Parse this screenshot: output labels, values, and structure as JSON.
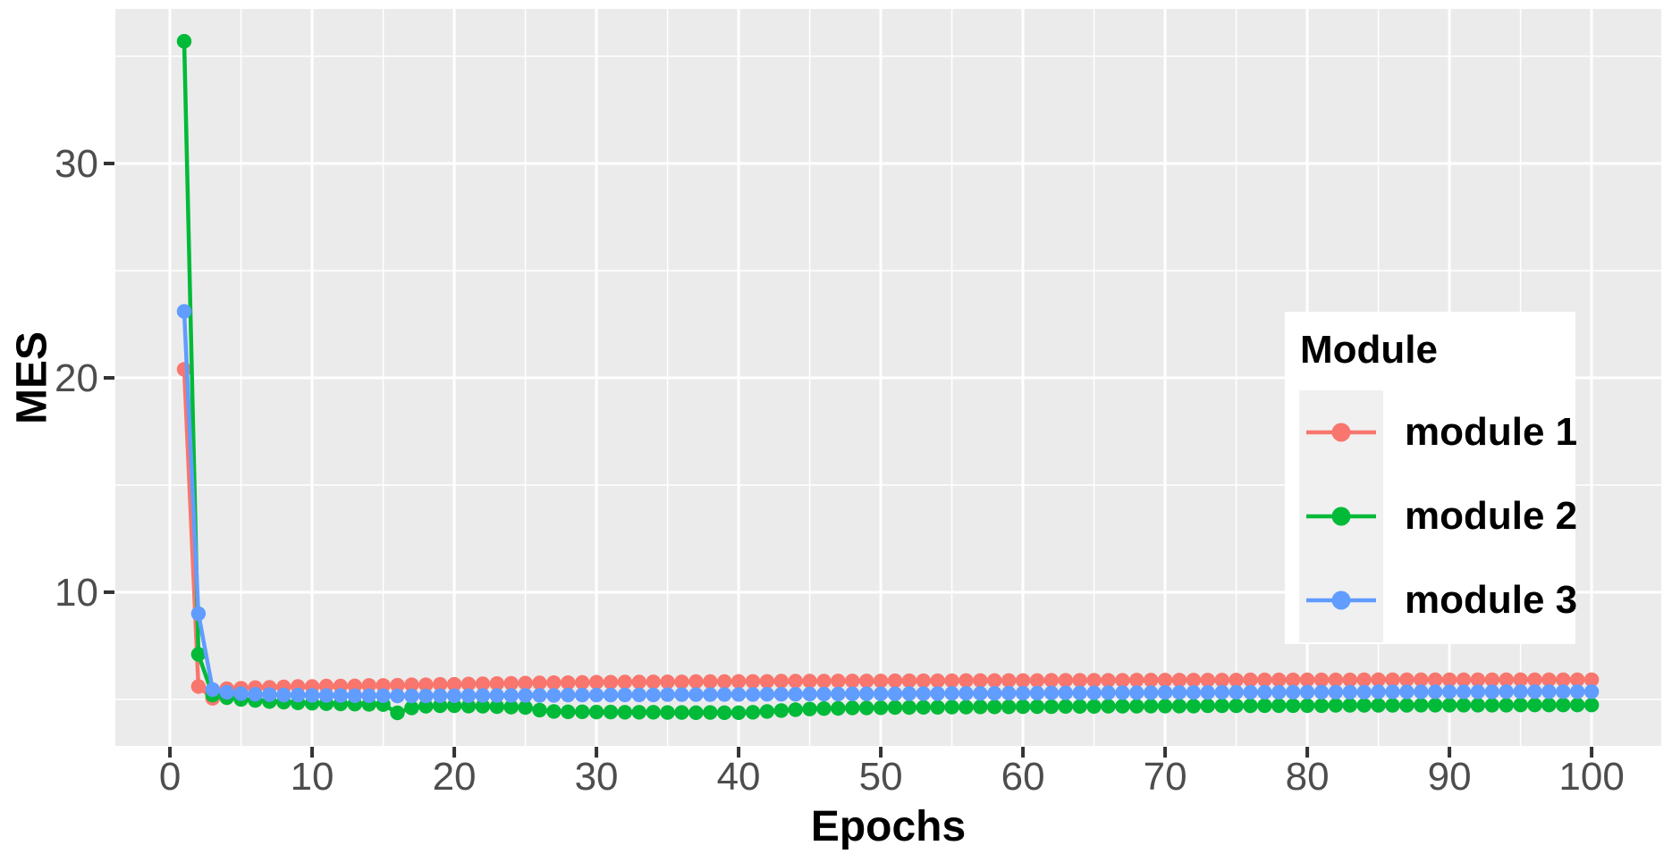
{
  "chart_data": {
    "type": "line",
    "title": "",
    "xlabel": "Epochs",
    "ylabel": "MES",
    "x_ticks": [
      0,
      10,
      20,
      30,
      40,
      50,
      60,
      70,
      80,
      90,
      100
    ],
    "x_minor_ticks": [
      5,
      15,
      25,
      35,
      45,
      55,
      65,
      75,
      85,
      95
    ],
    "y_ticks": [
      10,
      20,
      30
    ],
    "y_minor_ticks": [
      5,
      15,
      25,
      35
    ],
    "xlim": [
      -3.84,
      104.9
    ],
    "ylim": [
      2.83,
      37.21
    ],
    "grid": "white-on-gray",
    "legend": {
      "title": "Module",
      "position": "inside-right",
      "entries": [
        {
          "label": "module 1",
          "color": "#F8766D"
        },
        {
          "label": "module 2",
          "color": "#00BA38"
        },
        {
          "label": "module 3",
          "color": "#619CFF"
        }
      ]
    },
    "x": [
      1,
      2,
      3,
      4,
      5,
      6,
      7,
      8,
      9,
      10,
      11,
      12,
      13,
      14,
      15,
      16,
      17,
      18,
      19,
      20,
      21,
      22,
      23,
      24,
      25,
      26,
      27,
      28,
      29,
      30,
      31,
      32,
      33,
      34,
      35,
      36,
      37,
      38,
      39,
      40,
      41,
      42,
      43,
      44,
      45,
      46,
      47,
      48,
      49,
      50,
      51,
      52,
      53,
      54,
      55,
      56,
      57,
      58,
      59,
      60,
      61,
      62,
      63,
      64,
      65,
      66,
      67,
      68,
      69,
      70,
      71,
      72,
      73,
      74,
      75,
      76,
      77,
      78,
      79,
      80,
      81,
      82,
      83,
      84,
      85,
      86,
      87,
      88,
      89,
      90,
      91,
      92,
      93,
      94,
      95,
      96,
      97,
      98,
      99,
      100
    ],
    "series": [
      {
        "name": "module 1",
        "color": "#F8766D",
        "values": [
          20.4,
          5.6,
          5.05,
          5.5,
          5.52,
          5.55,
          5.56,
          5.58,
          5.6,
          5.6,
          5.62,
          5.62,
          5.63,
          5.65,
          5.65,
          5.66,
          5.68,
          5.68,
          5.7,
          5.7,
          5.72,
          5.73,
          5.74,
          5.75,
          5.76,
          5.77,
          5.78,
          5.78,
          5.79,
          5.8,
          5.8,
          5.81,
          5.81,
          5.82,
          5.82,
          5.82,
          5.83,
          5.83,
          5.83,
          5.84,
          5.84,
          5.84,
          5.85,
          5.85,
          5.85,
          5.85,
          5.86,
          5.86,
          5.86,
          5.86,
          5.87,
          5.87,
          5.87,
          5.87,
          5.87,
          5.88,
          5.88,
          5.88,
          5.88,
          5.88,
          5.88,
          5.89,
          5.89,
          5.89,
          5.89,
          5.89,
          5.89,
          5.9,
          5.9,
          5.9,
          5.9,
          5.9,
          5.9,
          5.9,
          5.9,
          5.91,
          5.91,
          5.91,
          5.91,
          5.91,
          5.91,
          5.91,
          5.91,
          5.92,
          5.92,
          5.92,
          5.92,
          5.92,
          5.92,
          5.92,
          5.92,
          5.92,
          5.92,
          5.92,
          5.92,
          5.92,
          5.92,
          5.92,
          5.92,
          5.92
        ]
      },
      {
        "name": "module 2",
        "color": "#00BA38",
        "values": [
          35.7,
          7.1,
          5.2,
          5.08,
          5.0,
          4.95,
          4.9,
          4.87,
          4.84,
          4.82,
          4.8,
          4.79,
          4.78,
          4.77,
          4.76,
          4.37,
          4.6,
          4.68,
          4.7,
          4.7,
          4.69,
          4.68,
          4.66,
          4.64,
          4.62,
          4.5,
          4.44,
          4.42,
          4.42,
          4.41,
          4.41,
          4.4,
          4.4,
          4.4,
          4.39,
          4.39,
          4.38,
          4.39,
          4.38,
          4.38,
          4.4,
          4.44,
          4.48,
          4.52,
          4.55,
          4.57,
          4.58,
          4.6,
          4.6,
          4.61,
          4.62,
          4.62,
          4.63,
          4.63,
          4.64,
          4.64,
          4.65,
          4.65,
          4.65,
          4.66,
          4.66,
          4.66,
          4.67,
          4.67,
          4.67,
          4.68,
          4.68,
          4.68,
          4.69,
          4.69,
          4.69,
          4.69,
          4.7,
          4.7,
          4.7,
          4.7,
          4.71,
          4.71,
          4.71,
          4.71,
          4.71,
          4.72,
          4.72,
          4.72,
          4.72,
          4.72,
          4.72,
          4.73,
          4.73,
          4.73,
          4.73,
          4.73,
          4.73,
          4.73,
          4.74,
          4.74,
          4.74,
          4.74,
          4.74,
          4.74
        ]
      },
      {
        "name": "module 3",
        "color": "#619CFF",
        "values": [
          23.1,
          9.0,
          5.46,
          5.33,
          5.27,
          5.24,
          5.22,
          5.2,
          5.2,
          5.19,
          5.18,
          5.18,
          5.17,
          5.17,
          5.17,
          5.16,
          5.16,
          5.16,
          5.17,
          5.17,
          5.17,
          5.18,
          5.18,
          5.18,
          5.19,
          5.19,
          5.19,
          5.2,
          5.2,
          5.2,
          5.2,
          5.21,
          5.21,
          5.21,
          5.22,
          5.22,
          5.22,
          5.22,
          5.23,
          5.23,
          5.23,
          5.24,
          5.24,
          5.24,
          5.25,
          5.25,
          5.25,
          5.26,
          5.26,
          5.26,
          5.26,
          5.27,
          5.27,
          5.27,
          5.28,
          5.28,
          5.28,
          5.28,
          5.29,
          5.29,
          5.29,
          5.3,
          5.3,
          5.3,
          5.3,
          5.31,
          5.31,
          5.31,
          5.31,
          5.32,
          5.32,
          5.32,
          5.32,
          5.33,
          5.33,
          5.33,
          5.33,
          5.33,
          5.34,
          5.34,
          5.34,
          5.34,
          5.34,
          5.34,
          5.35,
          5.35,
          5.35,
          5.35,
          5.35,
          5.35,
          5.35,
          5.35,
          5.35,
          5.36,
          5.36,
          5.36,
          5.36,
          5.36,
          5.36,
          5.36
        ]
      }
    ]
  },
  "colors": {
    "panel_bg": "#EBEBEB",
    "grid": "#FFFFFF",
    "tick_mark": "#333333",
    "tick_label": "#4D4D4D",
    "axis_title": "#000000",
    "legend_bg": "#FFFFFF",
    "legend_key_bg": "#F0F0F0"
  }
}
